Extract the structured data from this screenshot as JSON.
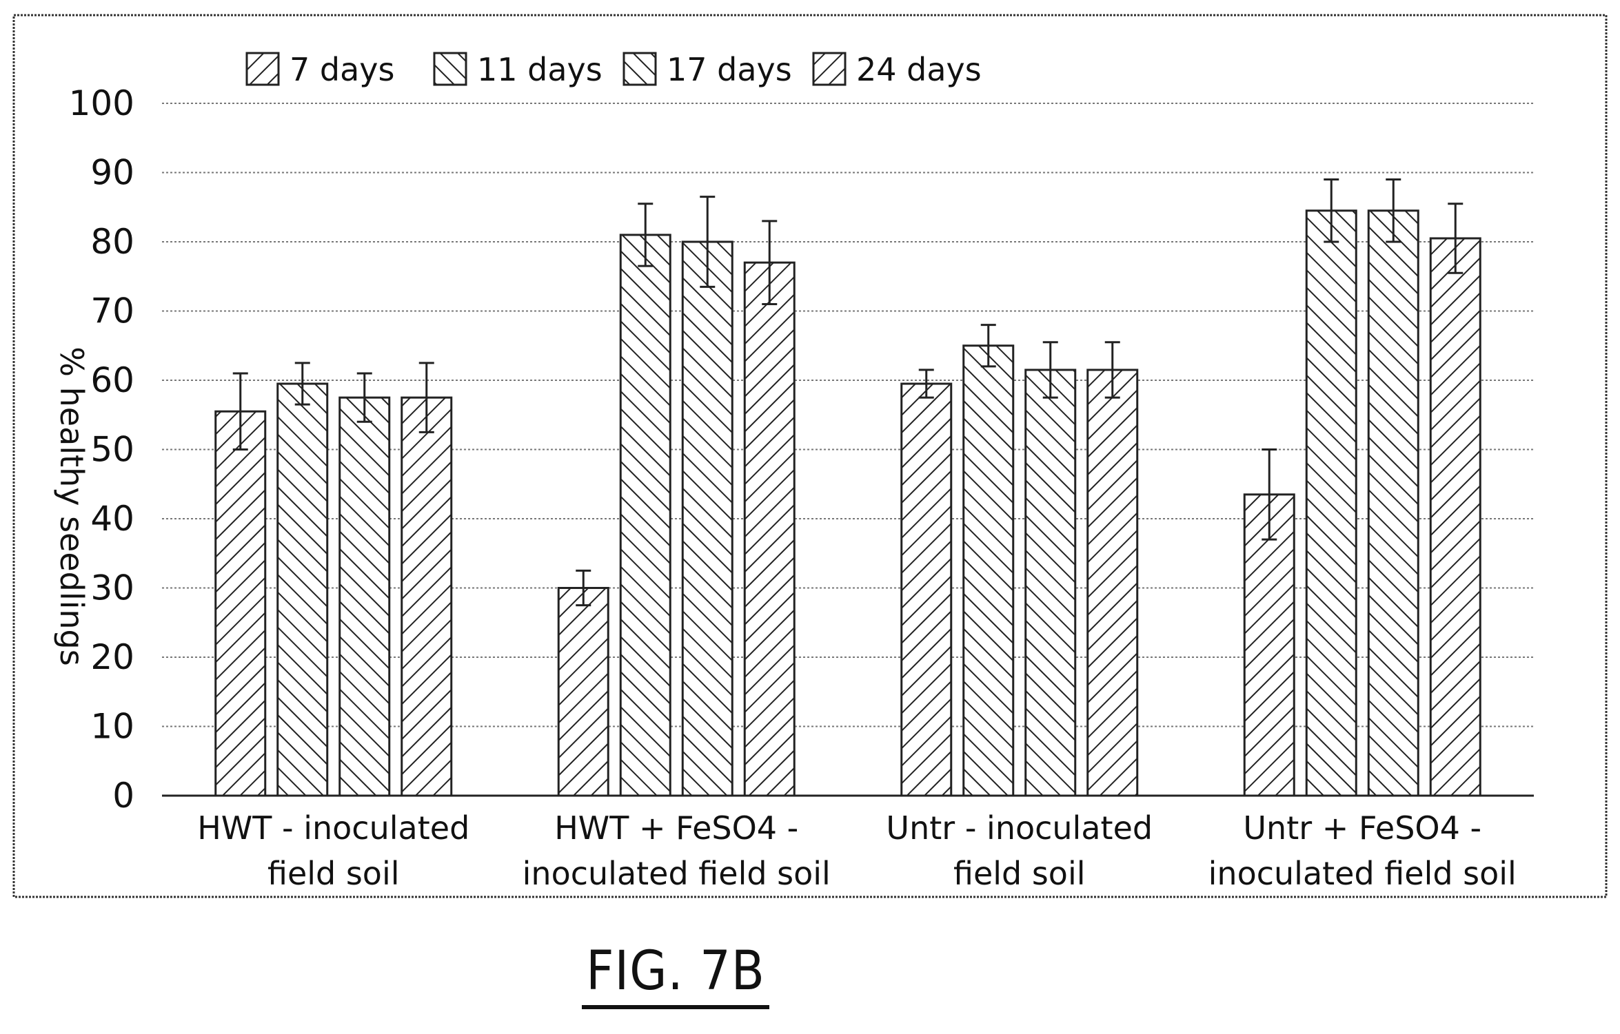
{
  "figure_label": "FIG. 7B",
  "chart_data": {
    "type": "bar",
    "ylabel": "% healthy seedlings",
    "xlabel": "",
    "ylim": [
      0,
      100
    ],
    "yticks": [
      0,
      10,
      20,
      30,
      40,
      50,
      60,
      70,
      80,
      90,
      100
    ],
    "grid": true,
    "legend_position": "top-left",
    "categories": [
      [
        "HWT - inoculated",
        "field soil"
      ],
      [
        "HWT + FeSO4 -",
        "inoculated field soil"
      ],
      [
        "Untr - inoculated",
        "field soil"
      ],
      [
        "Untr + FeSO4 -",
        "inoculated field soil"
      ]
    ],
    "series": [
      {
        "name": "7 days",
        "values": [
          55.5,
          30,
          59.5,
          43.5
        ],
        "errors": [
          5.5,
          2.5,
          2,
          6.5
        ],
        "hatch": "forward"
      },
      {
        "name": "11 days",
        "values": [
          59.5,
          81,
          65,
          84.5
        ],
        "errors": [
          3,
          4.5,
          3,
          4.5
        ],
        "hatch": "backward"
      },
      {
        "name": "17 days",
        "values": [
          57.5,
          80,
          61.5,
          84.5
        ],
        "errors": [
          3.5,
          6.5,
          4,
          4.5
        ],
        "hatch": "backward"
      },
      {
        "name": "24 days",
        "values": [
          57.5,
          77,
          61.5,
          80.5
        ],
        "errors": [
          5,
          6,
          4,
          5
        ],
        "hatch": "forward"
      }
    ]
  }
}
